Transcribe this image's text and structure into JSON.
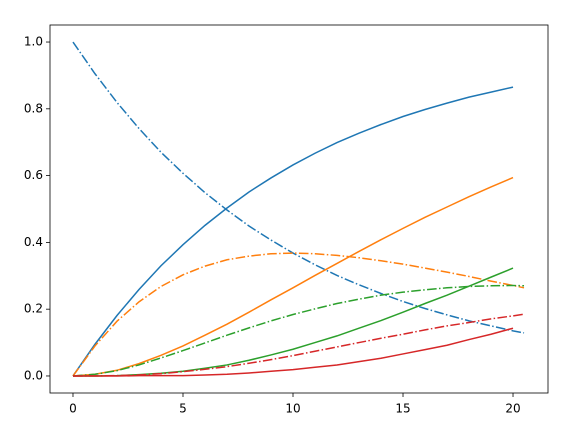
{
  "chart_data": {
    "type": "line",
    "xlim": [
      -1.045,
      21.59
    ],
    "ylim": [
      -0.051,
      1.051
    ],
    "xticks": [
      0,
      5,
      10,
      15,
      20
    ],
    "yticks": [
      {
        "value": 0,
        "label": "0.0"
      },
      {
        "value": 0.2,
        "label": "0.2"
      },
      {
        "value": 0.4,
        "label": "0.4"
      },
      {
        "value": 0.6,
        "label": "0.6"
      },
      {
        "value": 0.8,
        "label": "0.8"
      },
      {
        "value": 1.0,
        "label": "1.0"
      }
    ],
    "series": [
      {
        "color": "#1f77b4",
        "style": "solid",
        "x": [
          0,
          1,
          2,
          3,
          4,
          5,
          6,
          7,
          8,
          9,
          10,
          11,
          12,
          13,
          14,
          15,
          16,
          17,
          18,
          19,
          20
        ],
        "values": [
          0,
          0.095,
          0.181,
          0.259,
          0.33,
          0.393,
          0.451,
          0.503,
          0.551,
          0.593,
          0.632,
          0.667,
          0.699,
          0.727,
          0.753,
          0.777,
          0.798,
          0.817,
          0.835,
          0.85,
          0.865
        ]
      },
      {
        "color": "#1f77b4",
        "style": "dashdot",
        "x": [
          0,
          1,
          2,
          3,
          4,
          5,
          6,
          7,
          8,
          9,
          10,
          11,
          12,
          13,
          14,
          15,
          16,
          17,
          18,
          19,
          20,
          20.5
        ],
        "values": [
          1,
          0.905,
          0.819,
          0.741,
          0.67,
          0.607,
          0.549,
          0.497,
          0.449,
          0.407,
          0.368,
          0.333,
          0.301,
          0.273,
          0.247,
          0.223,
          0.202,
          0.183,
          0.165,
          0.15,
          0.135,
          0.129
        ]
      },
      {
        "color": "#ff7f0e",
        "style": "solid",
        "x": [
          0,
          1,
          2,
          3,
          4,
          5,
          6,
          7,
          8,
          9,
          10,
          11,
          12,
          13,
          14,
          15,
          16,
          17,
          18,
          19,
          20
        ],
        "values": [
          0,
          0.005,
          0.017,
          0.037,
          0.062,
          0.09,
          0.122,
          0.155,
          0.191,
          0.228,
          0.264,
          0.301,
          0.337,
          0.373,
          0.408,
          0.442,
          0.475,
          0.506,
          0.537,
          0.566,
          0.594
        ]
      },
      {
        "color": "#ff7f0e",
        "style": "dashdot",
        "x": [
          0,
          1,
          2,
          3,
          4,
          5,
          6,
          7,
          8,
          9,
          10,
          11,
          12,
          13,
          14,
          15,
          16,
          17,
          18,
          19,
          20,
          20.5
        ],
        "values": [
          0,
          0.09,
          0.164,
          0.222,
          0.268,
          0.303,
          0.329,
          0.348,
          0.359,
          0.366,
          0.368,
          0.366,
          0.361,
          0.354,
          0.345,
          0.335,
          0.323,
          0.311,
          0.298,
          0.284,
          0.271,
          0.264
        ]
      },
      {
        "color": "#2ca02c",
        "style": "solid",
        "x": [
          0,
          1,
          2,
          3,
          4,
          5,
          6,
          7,
          8,
          9,
          10,
          11,
          12,
          13,
          14,
          15,
          16,
          17,
          18,
          19,
          20
        ],
        "values": [
          0,
          0,
          0.001,
          0.004,
          0.008,
          0.014,
          0.023,
          0.033,
          0.047,
          0.063,
          0.08,
          0.1,
          0.12,
          0.143,
          0.166,
          0.191,
          0.217,
          0.242,
          0.269,
          0.296,
          0.323
        ]
      },
      {
        "color": "#2ca02c",
        "style": "dashdot",
        "x": [
          0,
          1,
          2,
          3,
          4,
          5,
          6,
          7,
          8,
          9,
          10,
          11,
          12,
          13,
          14,
          15,
          16,
          17,
          18,
          19,
          20,
          20.5
        ],
        "values": [
          0,
          0.005,
          0.016,
          0.033,
          0.054,
          0.076,
          0.099,
          0.122,
          0.144,
          0.165,
          0.184,
          0.201,
          0.217,
          0.23,
          0.242,
          0.251,
          0.258,
          0.264,
          0.268,
          0.27,
          0.271,
          0.27
        ]
      },
      {
        "color": "#d62728",
        "style": "solid",
        "x": [
          0,
          1,
          2,
          3,
          4,
          5,
          6,
          7,
          8,
          9,
          10,
          11,
          12,
          13,
          14,
          15,
          16,
          17,
          18,
          19,
          20
        ],
        "values": [
          0,
          0,
          0,
          0.001,
          0.001,
          0.001,
          0.003,
          0.005,
          0.009,
          0.014,
          0.019,
          0.026,
          0.033,
          0.043,
          0.053,
          0.066,
          0.079,
          0.092,
          0.109,
          0.125,
          0.143
        ]
      },
      {
        "color": "#d62728",
        "style": "dashdot",
        "x": [
          0,
          1,
          2,
          3,
          4,
          5,
          6,
          7,
          8,
          9,
          10,
          11,
          12,
          13,
          14,
          15,
          16,
          17,
          18,
          19,
          20,
          20.5
        ],
        "values": [
          0,
          0.0002,
          0.001,
          0.003,
          0.007,
          0.013,
          0.02,
          0.028,
          0.038,
          0.049,
          0.061,
          0.074,
          0.087,
          0.1,
          0.113,
          0.125,
          0.138,
          0.15,
          0.16,
          0.171,
          0.18,
          0.185
        ]
      }
    ]
  }
}
